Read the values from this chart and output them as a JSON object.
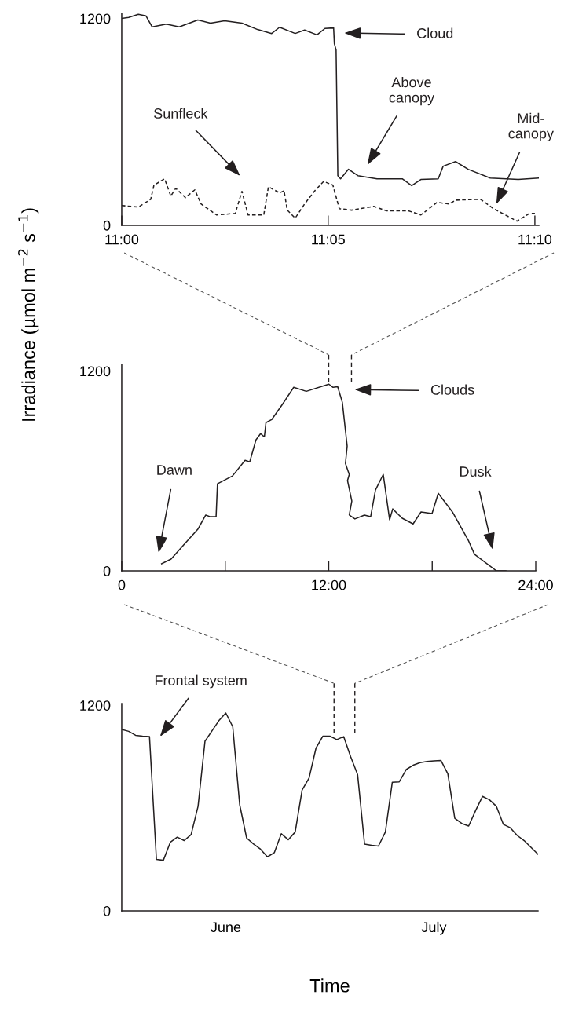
{
  "chart_data": [
    {
      "type": "line",
      "xlim": [
        11,
        11.1683
      ],
      "xticks": [
        {
          "value": 11,
          "label": "11:00"
        },
        {
          "value": 11.0833,
          "label": "11:05"
        },
        {
          "value": 11.1667,
          "label": "11:10"
        }
      ],
      "ylim": [
        0,
        1230
      ],
      "yticks": [
        0,
        1200
      ],
      "series": [
        {
          "color": "#231f20",
          "line_style": "solid",
          "x": [
            11.0,
            11.0028,
            11.0067,
            11.0098,
            11.0123,
            11.018,
            11.0232,
            11.0307,
            11.0358,
            11.0415,
            11.0485,
            11.0548,
            11.0605,
            11.0637,
            11.07,
            11.0738,
            11.0788,
            11.082,
            11.0855,
            11.0858,
            11.0865,
            11.0872,
            11.0883,
            11.0915,
            11.0953,
            11.103,
            11.1132,
            11.117,
            11.1207,
            11.1277,
            11.1297,
            11.1347,
            11.1398,
            11.1487,
            11.16,
            11.1683
          ],
          "values": [
            1200,
            1206,
            1224,
            1215,
            1151,
            1167,
            1151,
            1191,
            1173,
            1187,
            1173,
            1136,
            1113,
            1149,
            1113,
            1133,
            1105,
            1142,
            1145,
            1054,
            1018,
            288,
            270,
            325,
            288,
            270,
            270,
            230,
            266,
            270,
            343,
            370,
            325,
            274,
            266,
            274
          ]
        },
        {
          "color": "#231f20",
          "line_style": "dashed",
          "x": [
            11.0,
            11.0067,
            11.0117,
            11.013,
            11.0173,
            11.0198,
            11.0218,
            11.0257,
            11.0295,
            11.032,
            11.0383,
            11.0458,
            11.0485,
            11.051,
            11.0573,
            11.0592,
            11.0637,
            11.0655,
            11.0668,
            11.07,
            11.0738,
            11.0777,
            11.0815,
            11.0852,
            11.0878,
            11.0928,
            11.1017,
            11.1068,
            11.1157,
            11.1207,
            11.1272,
            11.1322,
            11.1347,
            11.1448,
            11.15,
            11.1595,
            11.1645,
            11.1667
          ],
          "values": [
            115,
            106,
            151,
            233,
            270,
            170,
            215,
            161,
            206,
            124,
            60,
            69,
            197,
            60,
            60,
            224,
            188,
            201,
            88,
            42,
            124,
            197,
            255,
            233,
            97,
            88,
            110,
            84,
            84,
            60,
            133,
            124,
            146,
            151,
            97,
            24,
            69,
            69
          ]
        }
      ],
      "annotations": [
        "Cloud",
        "Above\ncanopy",
        "Sunfleck",
        "Mid-\ncanopy"
      ]
    },
    {
      "type": "line",
      "ylabel": "Irradiance (µmol m$^{−2}$ s$^{−1}$)",
      "xlim": [
        0,
        24
      ],
      "xticks": [
        {
          "value": 0,
          "label": "0"
        },
        {
          "value": 6,
          "label": null
        },
        {
          "value": 12,
          "label": "12:00"
        },
        {
          "value": 18,
          "label": null
        },
        {
          "value": 24,
          "label": "24:00"
        }
      ],
      "ylim": [
        0,
        1240
      ],
      "yticks": [
        0,
        1200
      ],
      "series": [
        {
          "color": "#231f20",
          "line_style": "solid",
          "x": [
            2.31,
            2.86,
            3.68,
            4.41,
            4.87,
            5.14,
            5.47,
            5.55,
            6.42,
            7.15,
            7.42,
            7.78,
            8.05,
            8.27,
            8.36,
            8.69,
            9.33,
            9.97,
            10.7,
            12.01,
            12.25,
            12.52,
            12.79,
            13.07,
            12.97,
            13.19,
            13.09,
            13.34,
            13.19,
            13.52,
            14.07,
            14.43,
            14.71,
            15.16,
            15.53,
            15.71,
            16.26,
            16.89,
            17.35,
            17.99,
            18.35,
            19.17,
            20.09,
            20.45,
            21.72,
            22.27
          ],
          "values": [
            43,
            71,
            166,
            250,
            335,
            325,
            325,
            523,
            570,
            664,
            654,
            786,
            824,
            805,
            890,
            908,
            1002,
            1102,
            1078,
            1121,
            1102,
            1106,
            1012,
            749,
            645,
            579,
            542,
            419,
            335,
            312,
            335,
            325,
            485,
            579,
            307,
            372,
            316,
            282,
            354,
            344,
            466,
            354,
            184,
            100,
            0,
            0
          ]
        }
      ],
      "annotations": [
        "Clouds",
        "Dawn",
        "Dusk"
      ]
    },
    {
      "type": "line",
      "xlabel": "Time",
      "categories": [
        null,
        null,
        null,
        null,
        null,
        null,
        null,
        null,
        null,
        null,
        null,
        null,
        null,
        null,
        null,
        "June",
        null,
        null,
        null,
        null,
        null,
        null,
        null,
        null,
        null,
        null,
        null,
        null,
        null,
        null,
        null,
        null,
        null,
        null,
        null,
        null,
        null,
        null,
        null,
        null,
        null,
        null,
        null,
        null,
        null,
        "July",
        null,
        null,
        null,
        null,
        null,
        null,
        null,
        null,
        null,
        null,
        null,
        null,
        null,
        null,
        null
      ],
      "ylim": [
        0,
        1210
      ],
      "yticks": [
        0,
        1200
      ],
      "series": [
        {
          "color": "#231f20",
          "line_style": "solid",
          "values": [
            1059,
            1048,
            1025,
            1020,
            1018,
            300,
            295,
            400,
            430,
            410,
            445,
            610,
            990,
            1050,
            1110,
            1155,
            1075,
            620,
            425,
            390,
            360,
            315,
            340,
            450,
            415,
            460,
            705,
            775,
            950,
            1020,
            1020,
            1000,
            1017,
            900,
            795,
            390,
            383,
            378,
            460,
            751,
            753,
            825,
            850,
            865,
            872,
            875,
            878,
            800,
            540,
            510,
            495,
            585,
            668,
            648,
            610,
            505,
            485,
            440,
            410,
            370,
            330
          ]
        }
      ],
      "annotations": [
        "Frontal system"
      ]
    }
  ]
}
